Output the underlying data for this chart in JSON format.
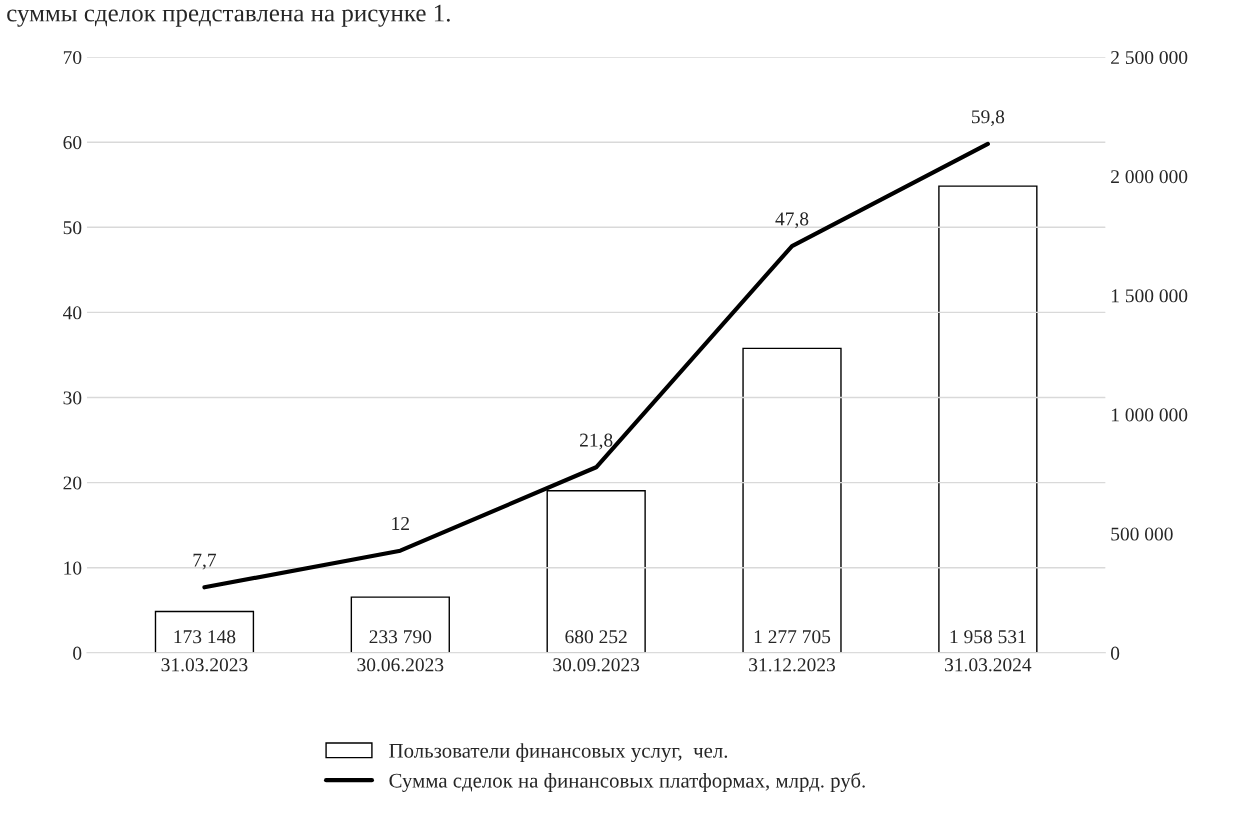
{
  "chart_data": {
    "type": "bar",
    "annotations": [
      "суммы сделок представлена на рисунке 1."
    ],
    "categories": [
      "31.03.2023",
      "30.06.2023",
      "30.09.2023",
      "31.12.2023",
      "31.03.2024"
    ],
    "series": [
      {
        "name": "Пользователи финансовых услуг,  чел.",
        "axis": "y2",
        "color": "#ffffff",
        "values": [
          173148,
          233790,
          680252,
          1277705,
          1958531
        ],
        "value_labels": [
          "173 148",
          "233 790",
          "680 252",
          "1 277 705",
          "1 958 531"
        ]
      },
      {
        "name": "Сумма сделок на финансовых платформах, млрд. руб.",
        "type": "line",
        "color": "#000000",
        "values": [
          7.7,
          12,
          21.8,
          47.8,
          59.8
        ],
        "value_labels": [
          "7,7",
          "12",
          "21,8",
          "47,8",
          "59,8"
        ]
      }
    ],
    "ylim": [
      0,
      70
    ],
    "yticks": [
      0,
      10,
      20,
      30,
      40,
      50,
      60,
      70
    ],
    "y2lim": [
      0,
      2500000
    ],
    "y2ticks": [
      {
        "value": 0,
        "label": "0"
      },
      {
        "value": 500000,
        "label": "500 000"
      },
      {
        "value": 1000000,
        "label": "1 000 000"
      },
      {
        "value": 1500000,
        "label": "1 500 000"
      },
      {
        "value": 2000000,
        "label": "2 000 000"
      },
      {
        "value": 2500000,
        "label": "2 500 000"
      }
    ],
    "grid": "y",
    "legend": "bottom",
    "marker": "none",
    "line_style": "solid"
  }
}
